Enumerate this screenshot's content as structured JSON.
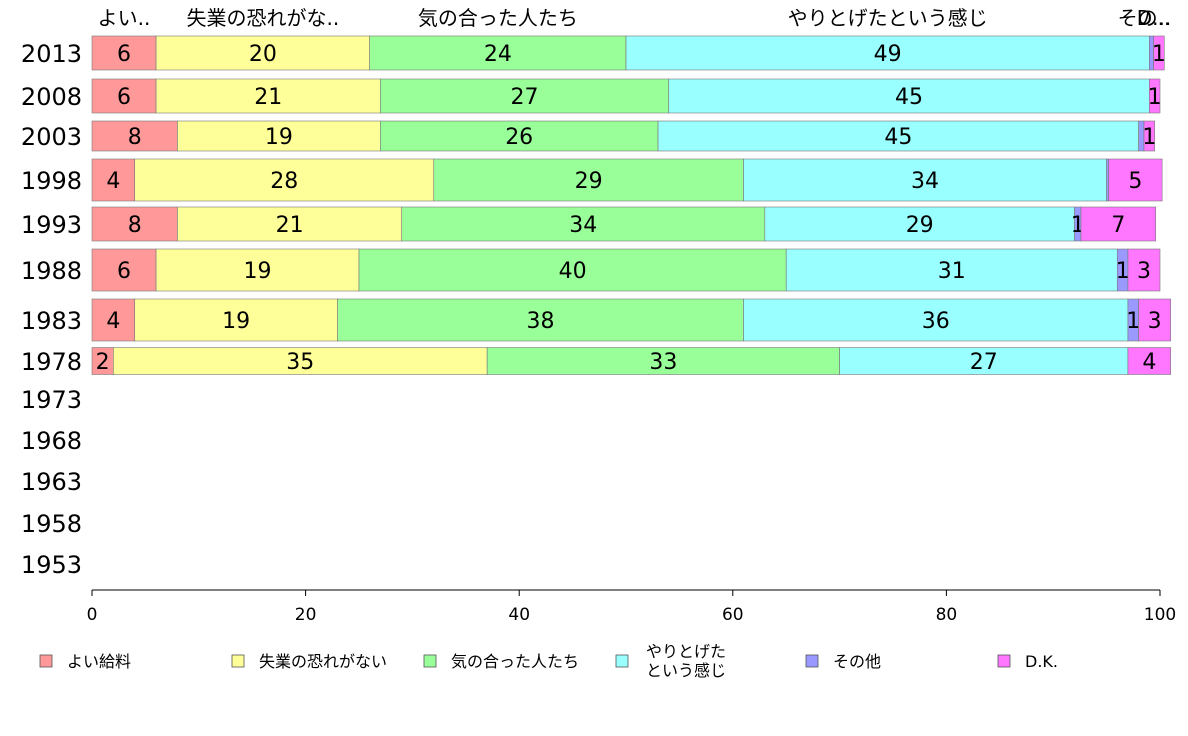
{
  "chart_data": {
    "type": "bar",
    "orientation": "horizontal",
    "stacked": true,
    "categories": [
      "2013",
      "2008",
      "2003",
      "1998",
      "1993",
      "1988",
      "1983",
      "1978",
      "1973",
      "1968",
      "1963",
      "1958",
      "1953"
    ],
    "series": [
      {
        "name": "よい給料",
        "color": "#ff9999",
        "header": "よい..",
        "values": [
          6,
          6,
          8,
          4,
          8,
          6,
          4,
          2,
          null,
          null,
          null,
          null,
          null
        ]
      },
      {
        "name": "失業の恐れがない",
        "color": "#ffff99",
        "header": "失業の恐れがな..",
        "values": [
          20,
          21,
          19,
          28,
          21,
          19,
          19,
          35,
          null,
          null,
          null,
          null,
          null
        ]
      },
      {
        "name": "気の合った人たち",
        "color": "#99ff99",
        "header": "気の合った人たち",
        "values": [
          24,
          27,
          26,
          29,
          34,
          40,
          38,
          33,
          null,
          null,
          null,
          null,
          null
        ]
      },
      {
        "name": "やりとげたという感じ",
        "legend_lines": [
          "やりとげた",
          "という感じ"
        ],
        "color": "#99ffff",
        "header": "やりとげたという感じ",
        "values": [
          49,
          45,
          45,
          34,
          29,
          31,
          36,
          27,
          null,
          null,
          null,
          null,
          null
        ]
      },
      {
        "name": "その他",
        "color": "#9999ff",
        "header": "その..",
        "values": [
          0.4,
          0,
          0.5,
          0.2,
          0.6,
          1,
          1,
          0,
          null,
          null,
          null,
          null,
          null
        ]
      },
      {
        "name": "D.K.",
        "color": "#ff77ff",
        "header": "D...",
        "values": [
          1,
          1,
          1,
          5,
          7,
          3,
          3,
          4,
          null,
          null,
          null,
          null,
          null
        ]
      }
    ],
    "segment_labels": [
      [
        "6",
        "20",
        "24",
        "49",
        "",
        "1"
      ],
      [
        "6",
        "21",
        "27",
        "45",
        "",
        "1"
      ],
      [
        "8",
        "19",
        "26",
        "45",
        "",
        "1"
      ],
      [
        "4",
        "28",
        "29",
        "34",
        "",
        "5"
      ],
      [
        "8",
        "21",
        "34",
        "29",
        "1",
        "7"
      ],
      [
        "6",
        "19",
        "40",
        "31",
        "1",
        "3"
      ],
      [
        "4",
        "19",
        "38",
        "36",
        "1",
        "3"
      ],
      [
        "2",
        "35",
        "33",
        "27",
        "",
        "4"
      ],
      [
        "",
        "",
        "",
        "",
        "",
        ""
      ],
      [
        "",
        "",
        "",
        "",
        "",
        ""
      ],
      [
        "",
        "",
        "",
        "",
        "",
        ""
      ],
      [
        "",
        "",
        "",
        "",
        "",
        ""
      ],
      [
        "",
        "",
        "",
        "",
        "",
        ""
      ]
    ],
    "xlim": [
      0,
      100
    ],
    "xticks": [
      "0",
      "20",
      "40",
      "60",
      "80",
      "100"
    ],
    "xlabel": "",
    "ylabel": "",
    "title": "",
    "grid": false,
    "legend_position": "bottom"
  }
}
